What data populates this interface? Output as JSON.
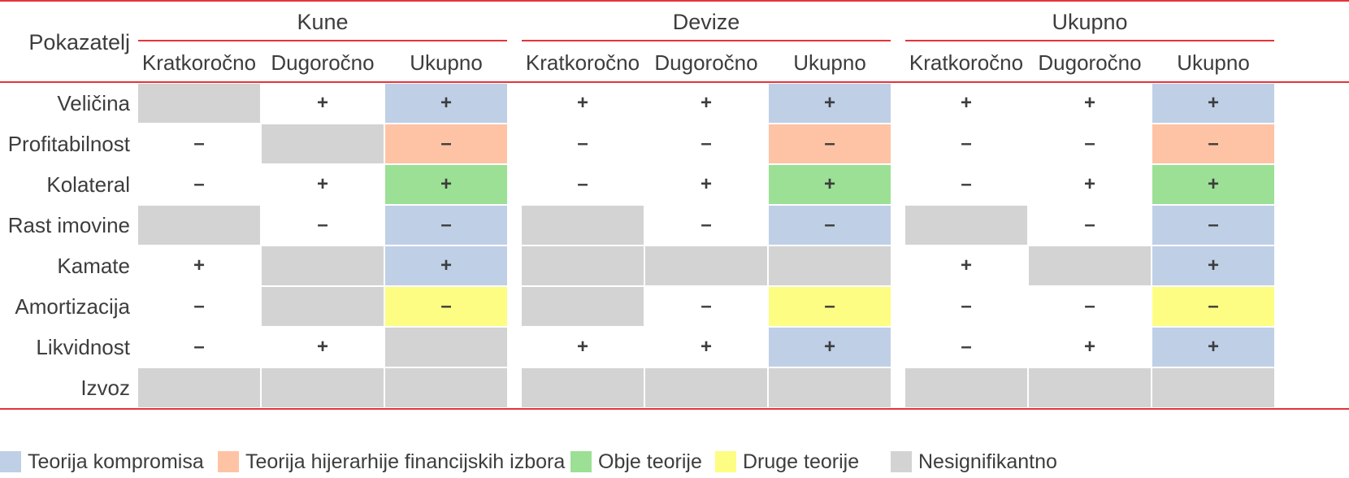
{
  "colors": {
    "red_line": "#e5333b",
    "blue": "#bfcfe6",
    "orange": "#fec3a5",
    "green": "#9be095",
    "yellow": "#fdfd83",
    "gray": "#d3d3d4"
  },
  "table": {
    "row_header": "Pokazatelj",
    "groups": [
      {
        "title": "Kune",
        "columns": [
          "Kratkoročno",
          "Dugoročno",
          "Ukupno"
        ]
      },
      {
        "title": "Devize",
        "columns": [
          "Kratkoročno",
          "Dugoročno",
          "Ukupno"
        ]
      },
      {
        "title": "Ukupno",
        "columns": [
          "Kratkoročno",
          "Dugoročno",
          "Ukupno"
        ]
      }
    ],
    "rows": [
      {
        "label": "Veličina",
        "cells": [
          {
            "sign": "",
            "bg": "gray"
          },
          {
            "sign": "+",
            "bg": "none"
          },
          {
            "sign": "+",
            "bg": "blue"
          },
          {
            "sign": "+",
            "bg": "none"
          },
          {
            "sign": "+",
            "bg": "none"
          },
          {
            "sign": "+",
            "bg": "blue"
          },
          {
            "sign": "+",
            "bg": "none"
          },
          {
            "sign": "+",
            "bg": "none"
          },
          {
            "sign": "+",
            "bg": "blue"
          }
        ]
      },
      {
        "label": "Profitabilnost",
        "cells": [
          {
            "sign": "–",
            "bg": "none"
          },
          {
            "sign": "",
            "bg": "gray"
          },
          {
            "sign": "–",
            "bg": "orange"
          },
          {
            "sign": "–",
            "bg": "none"
          },
          {
            "sign": "–",
            "bg": "none"
          },
          {
            "sign": "–",
            "bg": "orange"
          },
          {
            "sign": "–",
            "bg": "none"
          },
          {
            "sign": "–",
            "bg": "none"
          },
          {
            "sign": "–",
            "bg": "orange"
          }
        ]
      },
      {
        "label": "Kolateral",
        "cells": [
          {
            "sign": "–",
            "bg": "none"
          },
          {
            "sign": "+",
            "bg": "none"
          },
          {
            "sign": "+",
            "bg": "green"
          },
          {
            "sign": "–",
            "bg": "none"
          },
          {
            "sign": "+",
            "bg": "none"
          },
          {
            "sign": "+",
            "bg": "green"
          },
          {
            "sign": "–",
            "bg": "none"
          },
          {
            "sign": "+",
            "bg": "none"
          },
          {
            "sign": "+",
            "bg": "green"
          }
        ]
      },
      {
        "label": "Rast imovine",
        "cells": [
          {
            "sign": "",
            "bg": "gray"
          },
          {
            "sign": "–",
            "bg": "none"
          },
          {
            "sign": "–",
            "bg": "blue"
          },
          {
            "sign": "",
            "bg": "gray"
          },
          {
            "sign": "–",
            "bg": "none"
          },
          {
            "sign": "–",
            "bg": "blue"
          },
          {
            "sign": "",
            "bg": "gray"
          },
          {
            "sign": "–",
            "bg": "none"
          },
          {
            "sign": "–",
            "bg": "blue"
          }
        ]
      },
      {
        "label": "Kamate",
        "cells": [
          {
            "sign": "+",
            "bg": "none"
          },
          {
            "sign": "",
            "bg": "gray"
          },
          {
            "sign": "+",
            "bg": "blue"
          },
          {
            "sign": "",
            "bg": "gray"
          },
          {
            "sign": "",
            "bg": "gray"
          },
          {
            "sign": "",
            "bg": "gray"
          },
          {
            "sign": "+",
            "bg": "none"
          },
          {
            "sign": "",
            "bg": "gray"
          },
          {
            "sign": "+",
            "bg": "blue"
          }
        ]
      },
      {
        "label": "Amortizacija",
        "cells": [
          {
            "sign": "–",
            "bg": "none"
          },
          {
            "sign": "",
            "bg": "gray"
          },
          {
            "sign": "–",
            "bg": "yellow"
          },
          {
            "sign": "",
            "bg": "gray"
          },
          {
            "sign": "–",
            "bg": "none"
          },
          {
            "sign": "–",
            "bg": "yellow"
          },
          {
            "sign": "–",
            "bg": "none"
          },
          {
            "sign": "–",
            "bg": "none"
          },
          {
            "sign": "–",
            "bg": "yellow"
          }
        ]
      },
      {
        "label": "Likvidnost",
        "cells": [
          {
            "sign": "–",
            "bg": "none"
          },
          {
            "sign": "+",
            "bg": "none"
          },
          {
            "sign": "",
            "bg": "gray"
          },
          {
            "sign": "+",
            "bg": "none"
          },
          {
            "sign": "+",
            "bg": "none"
          },
          {
            "sign": "+",
            "bg": "blue"
          },
          {
            "sign": "–",
            "bg": "none"
          },
          {
            "sign": "+",
            "bg": "none"
          },
          {
            "sign": "+",
            "bg": "blue"
          }
        ]
      },
      {
        "label": "Izvoz",
        "cells": [
          {
            "sign": "",
            "bg": "gray"
          },
          {
            "sign": "",
            "bg": "gray"
          },
          {
            "sign": "",
            "bg": "gray"
          },
          {
            "sign": "",
            "bg": "gray"
          },
          {
            "sign": "",
            "bg": "gray"
          },
          {
            "sign": "",
            "bg": "gray"
          },
          {
            "sign": "",
            "bg": "gray"
          },
          {
            "sign": "",
            "bg": "gray"
          },
          {
            "sign": "",
            "bg": "gray"
          }
        ]
      }
    ]
  },
  "legend": [
    {
      "label": "Teorija kompromisa",
      "color": "blue"
    },
    {
      "label": "Teorija hijerarhije financijskih izbora",
      "color": "orange"
    },
    {
      "label": "Obje teorije",
      "color": "green"
    },
    {
      "label": "Druge teorije",
      "color": "yellow"
    },
    {
      "label": "Nesignifikantno",
      "color": "gray"
    }
  ]
}
